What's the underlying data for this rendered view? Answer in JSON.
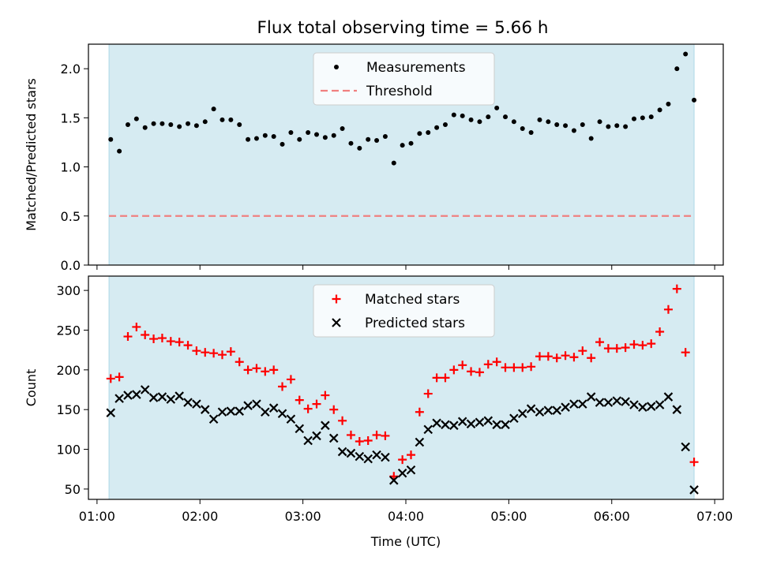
{
  "title": "Flux total observing time = 5.66 h",
  "colors": {
    "span": "#add8e6",
    "measurement": "#000000",
    "threshold": "#f08080",
    "matched": "#ff0000",
    "predicted": "#000000"
  },
  "chart_data": [
    {
      "type": "scatter",
      "panel": "top",
      "ylabel": "Matched/Predicted stars",
      "ylim": [
        0,
        2.25
      ],
      "yticks": [
        "0.0",
        "0.5",
        "1.0",
        "1.5",
        "2.0"
      ],
      "threshold": 0.5,
      "shaded_span": [
        "01:07",
        "06:48"
      ],
      "legend": {
        "placement": "upper center",
        "entries": [
          "Measurements",
          "Threshold"
        ]
      },
      "series": [
        {
          "name": "Measurements",
          "x": [
            "01:08",
            "01:13",
            "01:18",
            "01:23",
            "01:28",
            "01:33",
            "01:38",
            "01:43",
            "01:48",
            "01:53",
            "01:58",
            "02:03",
            "02:08",
            "02:13",
            "02:18",
            "02:23",
            "02:28",
            "02:33",
            "02:38",
            "02:43",
            "02:48",
            "02:53",
            "02:58",
            "03:03",
            "03:08",
            "03:13",
            "03:18",
            "03:23",
            "03:28",
            "03:33",
            "03:38",
            "03:43",
            "03:48",
            "03:53",
            "03:58",
            "04:03",
            "04:08",
            "04:13",
            "04:18",
            "04:23",
            "04:28",
            "04:33",
            "04:38",
            "04:43",
            "04:48",
            "04:53",
            "04:58",
            "05:03",
            "05:08",
            "05:13",
            "05:18",
            "05:23",
            "05:28",
            "05:33",
            "05:38",
            "05:43",
            "05:48",
            "05:53",
            "05:58",
            "06:03",
            "06:08",
            "06:13",
            "06:18",
            "06:23",
            "06:28",
            "06:33",
            "06:38",
            "06:43",
            "06:48"
          ],
          "values": [
            1.28,
            1.16,
            1.43,
            1.49,
            1.4,
            1.44,
            1.44,
            1.43,
            1.41,
            1.44,
            1.42,
            1.46,
            1.59,
            1.48,
            1.48,
            1.43,
            1.28,
            1.29,
            1.32,
            1.31,
            1.23,
            1.35,
            1.28,
            1.35,
            1.33,
            1.3,
            1.32,
            1.39,
            1.24,
            1.19,
            1.28,
            1.27,
            1.31,
            1.04,
            1.22,
            1.24,
            1.34,
            1.35,
            1.4,
            1.43,
            1.53,
            1.52,
            1.48,
            1.46,
            1.51,
            1.6,
            1.51,
            1.46,
            1.39,
            1.35,
            1.48,
            1.46,
            1.43,
            1.42,
            1.37,
            1.43,
            1.29,
            1.46,
            1.41,
            1.42,
            1.41,
            1.49,
            1.5,
            1.51,
            1.58,
            1.64,
            2.0,
            2.15,
            1.68
          ]
        }
      ]
    },
    {
      "type": "scatter",
      "panel": "bottom",
      "xlabel": "Time (UTC)",
      "ylabel": "Count",
      "xlim": [
        "00:55",
        "07:05"
      ],
      "xticks": [
        "01:00",
        "02:00",
        "03:00",
        "04:00",
        "05:00",
        "06:00",
        "07:00"
      ],
      "ylim": [
        37,
        318
      ],
      "yticks": [
        "50",
        "100",
        "150",
        "200",
        "250",
        "300"
      ],
      "shaded_span": [
        "01:07",
        "06:48"
      ],
      "legend": {
        "placement": "upper center",
        "entries": [
          "Matched stars",
          "Predicted stars"
        ]
      },
      "series": [
        {
          "name": "Matched stars",
          "marker": "+",
          "x": [
            "01:08",
            "01:13",
            "01:18",
            "01:23",
            "01:28",
            "01:33",
            "01:38",
            "01:43",
            "01:48",
            "01:53",
            "01:58",
            "02:03",
            "02:08",
            "02:13",
            "02:18",
            "02:23",
            "02:28",
            "02:33",
            "02:38",
            "02:43",
            "02:48",
            "02:53",
            "02:58",
            "03:03",
            "03:08",
            "03:13",
            "03:18",
            "03:23",
            "03:28",
            "03:33",
            "03:38",
            "03:43",
            "03:48",
            "03:53",
            "03:58",
            "04:03",
            "04:08",
            "04:13",
            "04:18",
            "04:23",
            "04:28",
            "04:33",
            "04:38",
            "04:43",
            "04:48",
            "04:53",
            "04:58",
            "05:03",
            "05:08",
            "05:13",
            "05:18",
            "05:23",
            "05:28",
            "05:33",
            "05:38",
            "05:43",
            "05:48",
            "05:53",
            "05:58",
            "06:03",
            "06:08",
            "06:13",
            "06:18",
            "06:23",
            "06:28",
            "06:33",
            "06:38",
            "06:43",
            "06:48"
          ],
          "values": [
            189,
            191,
            242,
            254,
            244,
            239,
            240,
            236,
            235,
            231,
            224,
            222,
            221,
            219,
            223,
            210,
            200,
            202,
            198,
            200,
            179,
            188,
            162,
            151,
            157,
            168,
            150,
            136,
            118,
            110,
            111,
            118,
            117,
            66,
            87,
            93,
            147,
            170,
            190,
            190,
            200,
            206,
            198,
            197,
            207,
            210,
            203,
            203,
            203,
            204,
            217,
            217,
            215,
            218,
            216,
            224,
            215,
            235,
            227,
            227,
            228,
            232,
            231,
            233,
            248,
            276,
            302,
            222,
            84
          ]
        },
        {
          "name": "Predicted stars",
          "marker": "x",
          "x": [
            "01:08",
            "01:13",
            "01:18",
            "01:23",
            "01:28",
            "01:33",
            "01:38",
            "01:43",
            "01:48",
            "01:53",
            "01:58",
            "02:03",
            "02:08",
            "02:13",
            "02:18",
            "02:23",
            "02:28",
            "02:33",
            "02:38",
            "02:43",
            "02:48",
            "02:53",
            "02:58",
            "03:03",
            "03:08",
            "03:13",
            "03:18",
            "03:23",
            "03:28",
            "03:33",
            "03:38",
            "03:43",
            "03:48",
            "03:53",
            "03:58",
            "04:03",
            "04:08",
            "04:13",
            "04:18",
            "04:23",
            "04:28",
            "04:33",
            "04:38",
            "04:43",
            "04:48",
            "04:53",
            "04:58",
            "05:03",
            "05:08",
            "05:13",
            "05:18",
            "05:23",
            "05:28",
            "05:33",
            "05:38",
            "05:43",
            "05:48",
            "05:53",
            "05:58",
            "06:03",
            "06:08",
            "06:13",
            "06:18",
            "06:23",
            "06:28",
            "06:33",
            "06:38",
            "06:43",
            "06:48"
          ],
          "values": [
            146,
            164,
            168,
            169,
            175,
            165,
            166,
            163,
            167,
            159,
            157,
            150,
            138,
            147,
            148,
            148,
            155,
            157,
            147,
            152,
            145,
            138,
            126,
            111,
            117,
            130,
            114,
            97,
            95,
            91,
            88,
            93,
            90,
            61,
            70,
            74,
            109,
            125,
            133,
            131,
            130,
            135,
            132,
            134,
            136,
            131,
            131,
            139,
            145,
            151,
            147,
            149,
            149,
            153,
            157,
            157,
            166,
            159,
            159,
            161,
            160,
            156,
            153,
            154,
            156,
            166,
            150,
            103,
            49
          ]
        }
      ]
    }
  ]
}
